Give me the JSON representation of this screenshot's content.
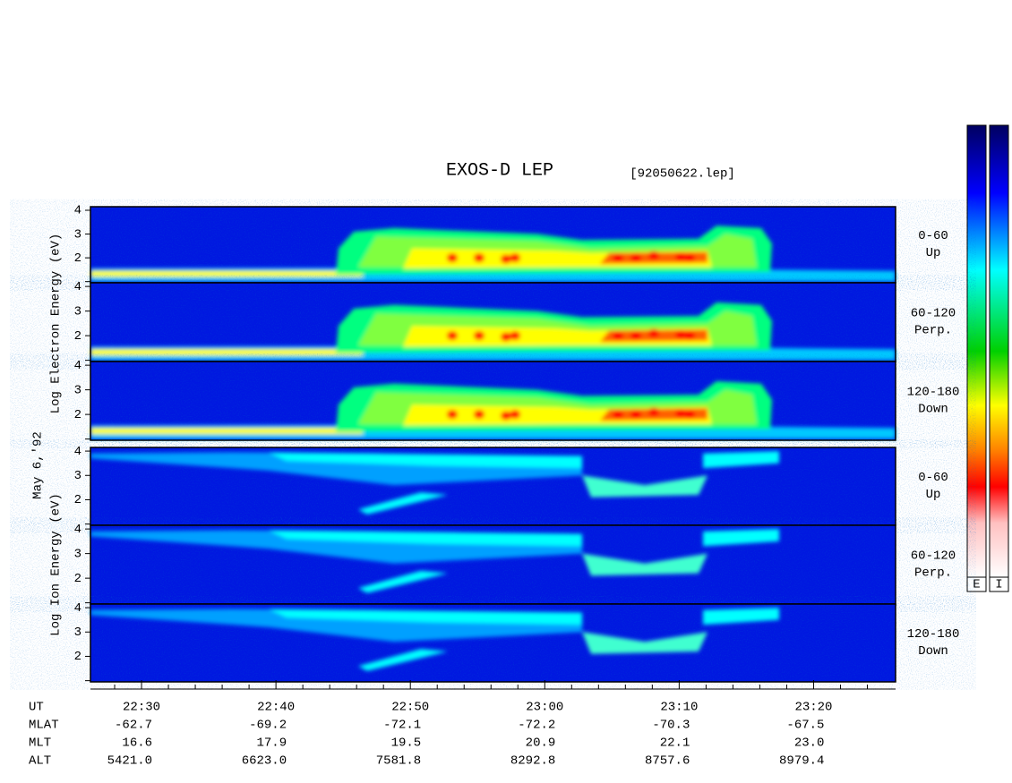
{
  "chart_data": {
    "type": "spectrogram",
    "title": "EXOS-D LEP",
    "file": "[92050622.lep]",
    "date_label": "May 6,'92",
    "groups": [
      {
        "ylabel": "Log Electron Energy (eV)",
        "species": "electron"
      },
      {
        "ylabel": "Log Ion Energy (eV)",
        "species": "ion"
      }
    ],
    "panels": [
      {
        "group": 0,
        "label": "0-60",
        "sublabel": "Up"
      },
      {
        "group": 0,
        "label": "60-120",
        "sublabel": "Perp."
      },
      {
        "group": 0,
        "label": "120-180",
        "sublabel": "Down"
      },
      {
        "group": 1,
        "label": "0-60",
        "sublabel": "Up"
      },
      {
        "group": 1,
        "label": "60-120",
        "sublabel": "Perp."
      },
      {
        "group": 1,
        "label": "120-180",
        "sublabel": "Down"
      }
    ],
    "ylim": [
      0.95,
      4.15
    ],
    "yticks": [
      2,
      3,
      4
    ],
    "minor_yticks": [
      1
    ],
    "xlim": [
      1346.2,
      1406.1
    ],
    "x_label": "UT",
    "xticks": [
      {
        "value": 1350,
        "label": "22:30"
      },
      {
        "value": 1360,
        "label": "22:40"
      },
      {
        "value": 1370,
        "label": "22:50"
      },
      {
        "value": 1380,
        "label": "23:00"
      },
      {
        "value": 1390,
        "label": "23:10"
      },
      {
        "value": 1400,
        "label": "23:20"
      }
    ],
    "minor_xticks": [
      1348,
      1352,
      1354,
      1356,
      1358,
      1362,
      1364,
      1366,
      1368,
      1372,
      1374,
      1376,
      1378,
      1382,
      1384,
      1386,
      1388,
      1392,
      1394,
      1396,
      1398,
      1402,
      1404
    ],
    "rows": [
      {
        "name": "MLAT",
        "values": [
          "-62.7",
          "-69.2",
          "-72.1",
          "-72.2",
          "-70.3",
          "-67.5"
        ]
      },
      {
        "name": "MLT",
        "values": [
          "16.6",
          "17.9",
          "19.5",
          "20.9",
          "22.1",
          "23.0"
        ]
      },
      {
        "name": "ALT",
        "values": [
          "5421.0",
          "6623.0",
          "7581.8",
          "8292.8",
          "8757.6",
          "8979.4"
        ]
      }
    ],
    "colorbars": [
      "E",
      "I"
    ]
  }
}
